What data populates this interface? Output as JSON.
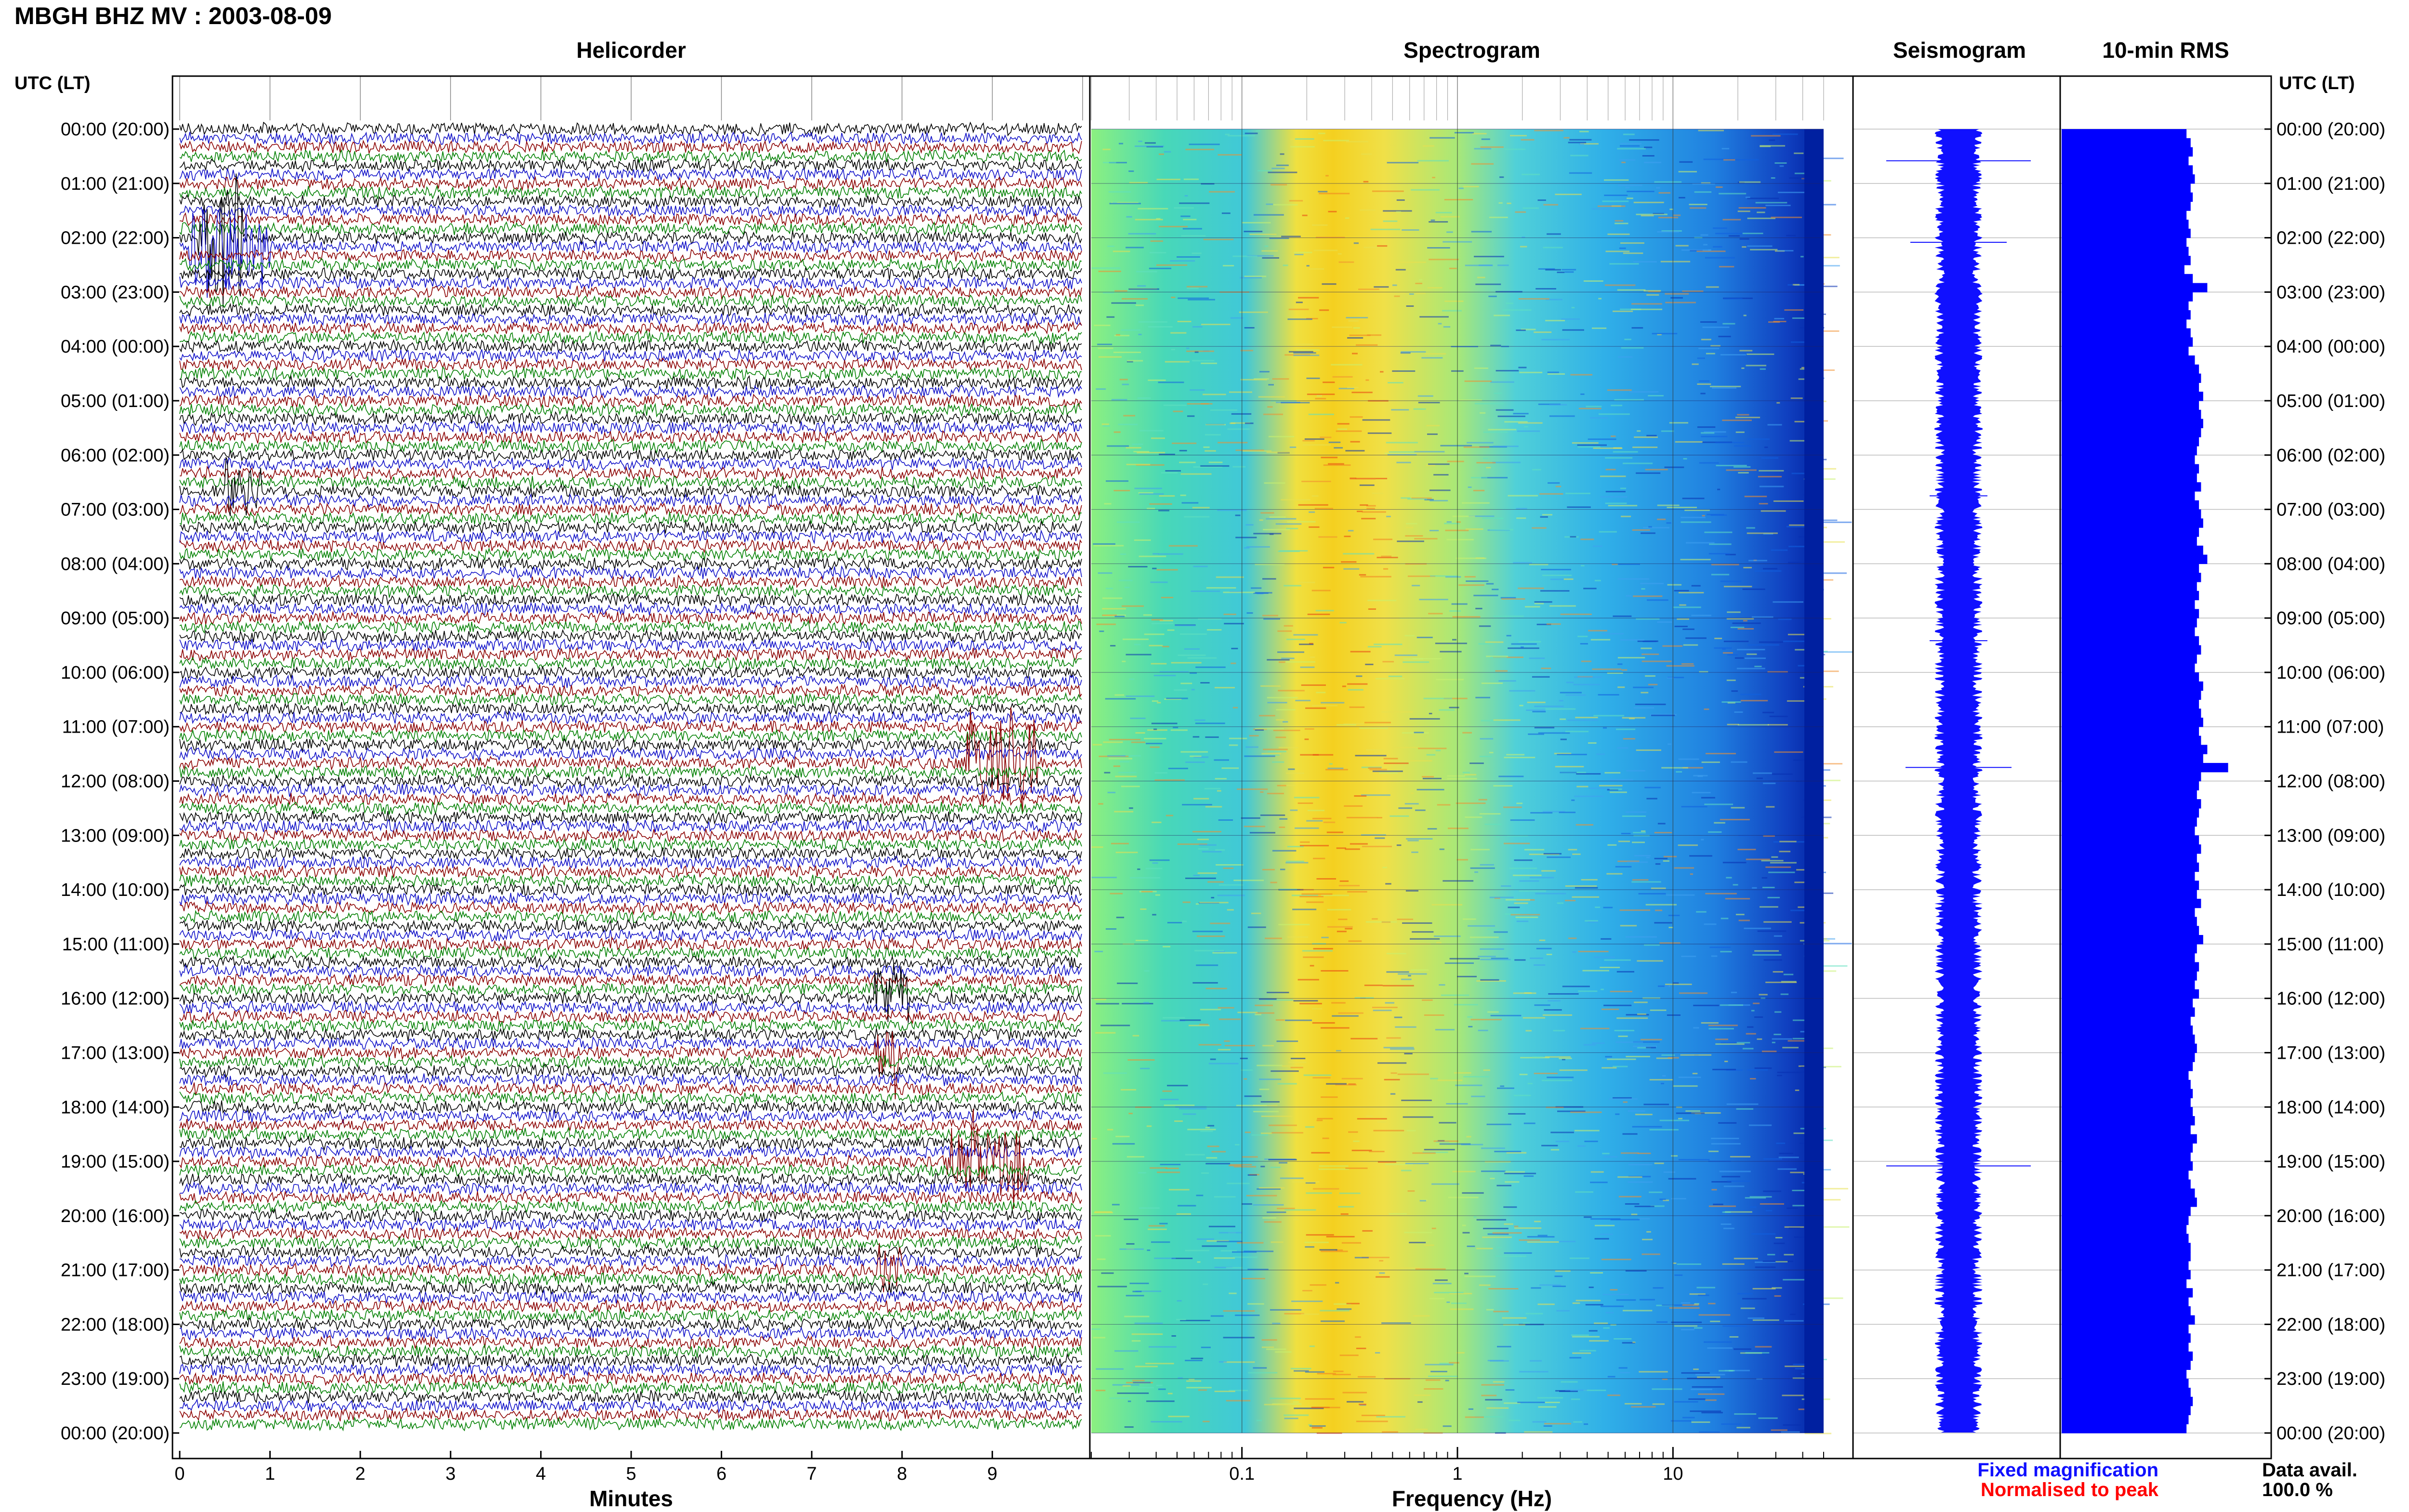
{
  "chart_data": {
    "type": "helicorder",
    "title": "MBGH BHZ MV : 2003-08-09",
    "time_axis_label": "UTC (LT)",
    "time_labels": [
      "00:00 (20:00)",
      "01:00 (21:00)",
      "02:00 (22:00)",
      "03:00 (23:00)",
      "04:00 (00:00)",
      "05:00 (01:00)",
      "06:00 (02:00)",
      "07:00 (03:00)",
      "08:00 (04:00)",
      "09:00 (05:00)",
      "10:00 (06:00)",
      "11:00 (07:00)",
      "12:00 (08:00)",
      "13:00 (09:00)",
      "14:00 (10:00)",
      "15:00 (11:00)",
      "16:00 (12:00)",
      "17:00 (13:00)",
      "18:00 (14:00)",
      "19:00 (15:00)",
      "20:00 (16:00)",
      "21:00 (17:00)",
      "22:00 (18:00)",
      "23:00 (19:00)",
      "00:00 (20:00)"
    ],
    "panels": {
      "helicorder": {
        "title": "Helicorder",
        "xlabel": "Minutes",
        "xlim": [
          0,
          10
        ],
        "xticks": [
          "0",
          "1",
          "2",
          "3",
          "4",
          "5",
          "6",
          "7",
          "8",
          "9"
        ],
        "trace_colors": [
          "#000000",
          "#1010c8",
          "#8b0000",
          "#008000"
        ],
        "traces_per_hour": 6
      },
      "spectrogram": {
        "title": "Spectrogram",
        "xlabel": "Frequency (Hz)",
        "xscale": "log",
        "xlim": [
          0.02,
          50
        ],
        "xticks": [
          "0.1",
          "1",
          "10"
        ],
        "peak_band_hz": [
          0.25,
          0.6
        ]
      },
      "seismogram": {
        "title": "Seismogram",
        "legend": [
          {
            "label": "Fixed magnification",
            "color": "#1010ff"
          },
          {
            "label": "Normalised to peak",
            "color": "#ff0000"
          }
        ]
      },
      "rms": {
        "title": "10-min RMS",
        "bar_color": "#0000ff",
        "values": [
          0.6,
          0.62,
          0.63,
          0.61,
          0.63,
          0.64,
          0.62,
          0.63,
          0.62,
          0.6,
          0.61,
          0.62,
          0.6,
          0.61,
          0.62,
          0.59,
          0.63,
          0.7,
          0.63,
          0.61,
          0.62,
          0.6,
          0.62,
          0.63,
          0.61,
          0.64,
          0.66,
          0.67,
          0.66,
          0.68,
          0.66,
          0.67,
          0.68,
          0.67,
          0.66,
          0.65,
          0.64,
          0.66,
          0.65,
          0.67,
          0.64,
          0.66,
          0.67,
          0.68,
          0.66,
          0.65,
          0.68,
          0.7,
          0.66,
          0.67,
          0.65,
          0.66,
          0.64,
          0.66,
          0.65,
          0.64,
          0.66,
          0.67,
          0.65,
          0.64,
          0.66,
          0.68,
          0.67,
          0.66,
          0.67,
          0.68,
          0.66,
          0.67,
          0.7,
          0.68,
          0.8,
          0.67,
          0.66,
          0.65,
          0.67,
          0.66,
          0.65,
          0.64,
          0.66,
          0.67,
          0.65,
          0.66,
          0.64,
          0.66,
          0.65,
          0.67,
          0.64,
          0.65,
          0.66,
          0.68,
          0.65,
          0.64,
          0.66,
          0.65,
          0.64,
          0.66,
          0.63,
          0.64,
          0.62,
          0.63,
          0.64,
          0.65,
          0.64,
          0.63,
          0.61,
          0.62,
          0.63,
          0.62,
          0.63,
          0.64,
          0.62,
          0.65,
          0.63,
          0.62,
          0.63,
          0.61,
          0.62,
          0.64,
          0.65,
          0.62,
          0.61,
          0.6,
          0.61,
          0.62,
          0.62,
          0.61,
          0.62,
          0.6,
          0.63,
          0.61,
          0.62,
          0.64,
          0.61,
          0.62,
          0.61,
          0.63,
          0.62,
          0.6,
          0.61,
          0.62,
          0.63,
          0.62,
          0.61,
          0.6
        ]
      }
    },
    "data_availability_label": "Data avail.",
    "data_availability_value": "100.0 %"
  }
}
